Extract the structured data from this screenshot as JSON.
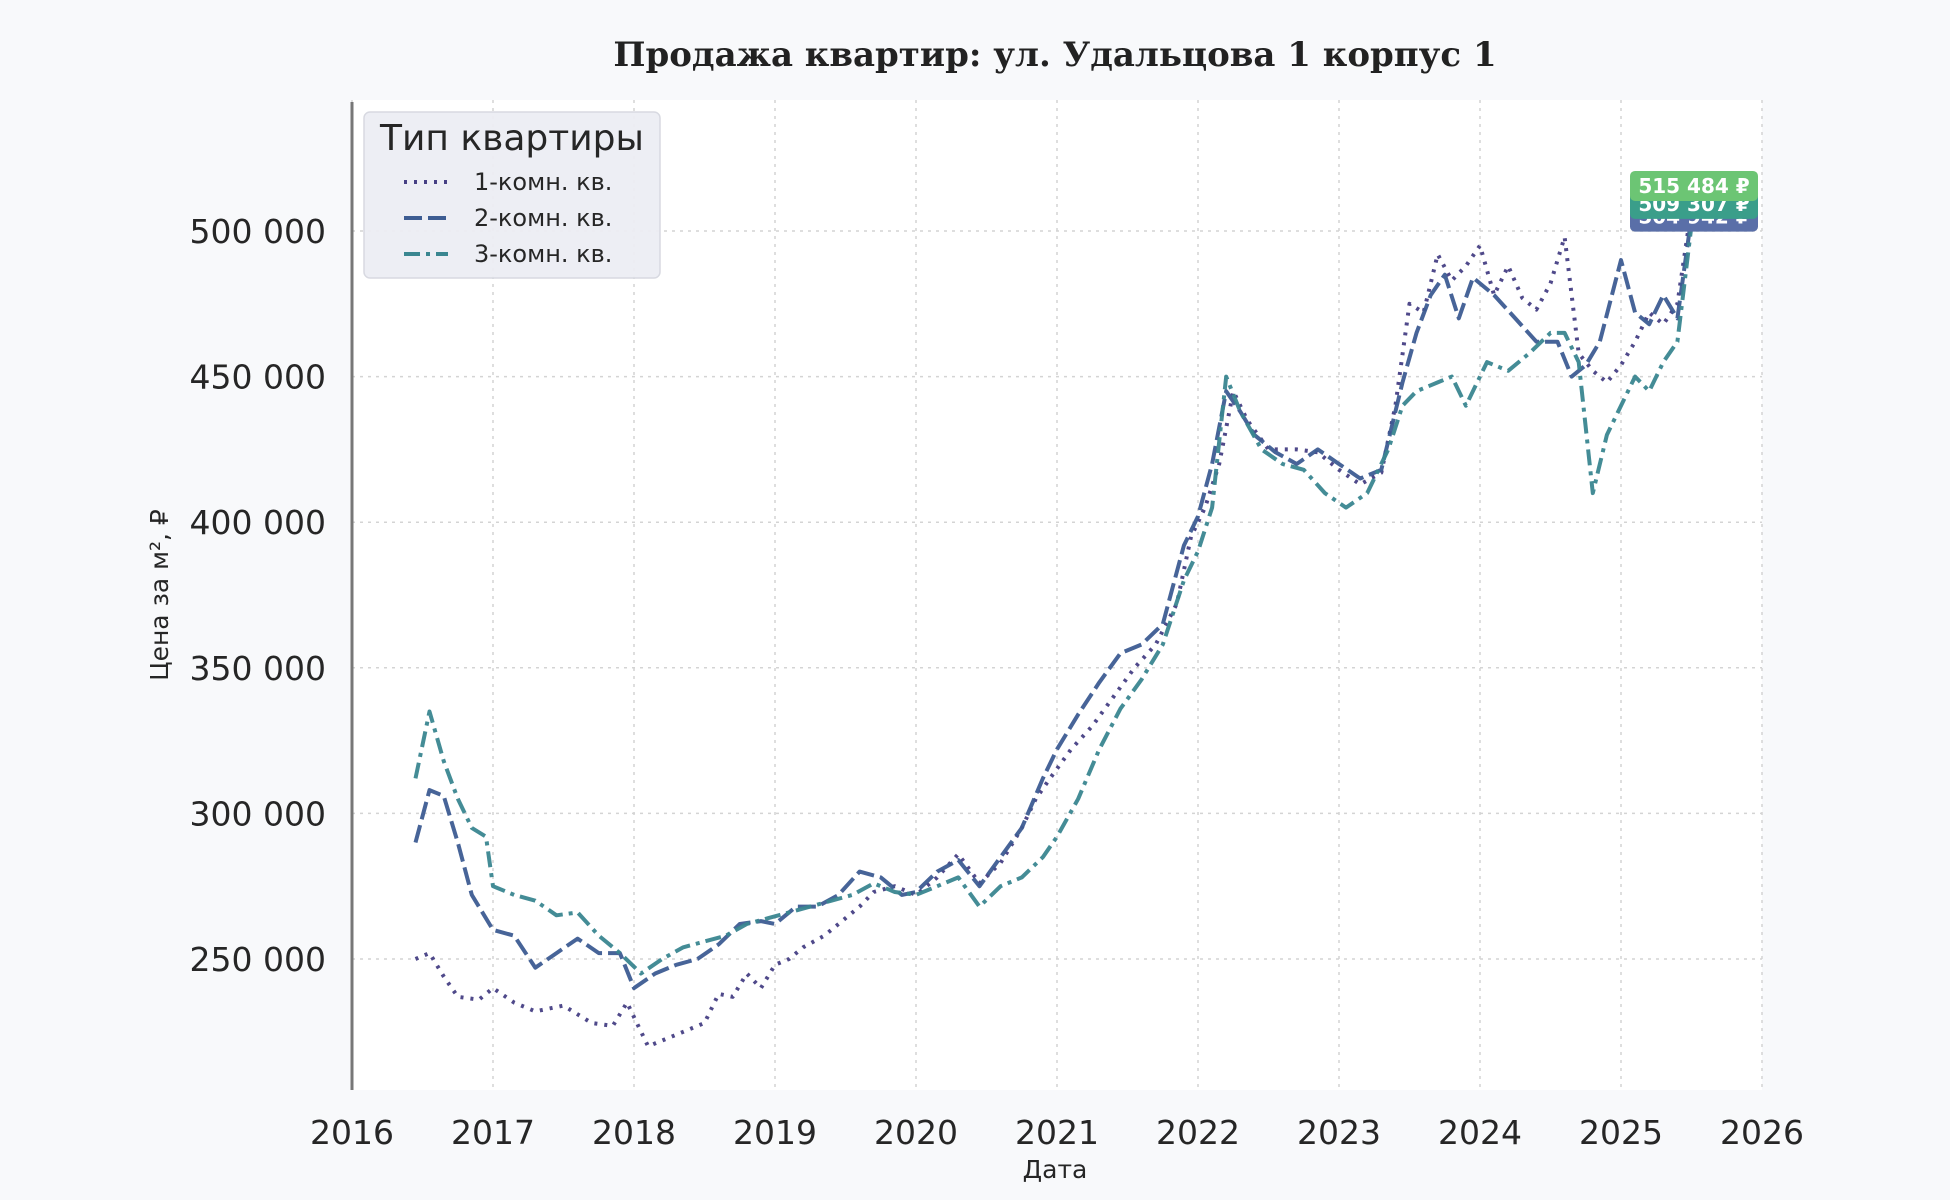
{
  "chart_data": {
    "type": "line",
    "title": "Продажа квартир: ул. Удальцова 1 корпус 1",
    "xlabel": "Дата",
    "ylabel": "Цена за м², ₽",
    "xlim": [
      2016.0,
      2026.0
    ],
    "ylim": [
      205000,
      545000
    ],
    "x_ticks": [
      2016,
      2017,
      2018,
      2019,
      2020,
      2021,
      2022,
      2023,
      2024,
      2025,
      2026
    ],
    "x_tick_labels": [
      "2016",
      "2017",
      "2018",
      "2019",
      "2020",
      "2021",
      "2022",
      "2023",
      "2024",
      "2025",
      "2026"
    ],
    "y_ticks": [
      250000,
      300000,
      350000,
      400000,
      450000,
      500000
    ],
    "y_tick_labels": [
      "250 000",
      "300 000",
      "350 000",
      "400 000",
      "450 000",
      "500 000"
    ],
    "grid": true,
    "legend": {
      "title": "Тип квартиры",
      "placement": "top-left"
    },
    "series": [
      {
        "name": "1-комн. кв.",
        "color": "#463f84",
        "dash": "dotted",
        "x": [
          2016.45,
          2016.55,
          2016.65,
          2016.75,
          2016.9,
          2017.0,
          2017.15,
          2017.3,
          2017.5,
          2017.7,
          2017.85,
          2017.95,
          2018.1,
          2018.2,
          2018.35,
          2018.5,
          2018.6,
          2018.7,
          2018.8,
          2018.9,
          2019.0,
          2019.1,
          2019.2,
          2019.35,
          2019.45,
          2019.6,
          2019.7,
          2019.85,
          2020.0,
          2020.15,
          2020.3,
          2020.45,
          2020.6,
          2020.75,
          2020.85,
          2020.95,
          2021.1,
          2021.25,
          2021.4,
          2021.55,
          2021.7,
          2021.85,
          2021.95,
          2022.05,
          2022.15,
          2022.25,
          2022.35,
          2022.5,
          2022.7,
          2022.85,
          2023.0,
          2023.15,
          2023.3,
          2023.4,
          2023.5,
          2023.6,
          2023.7,
          2023.8,
          2023.9,
          2024.0,
          2024.1,
          2024.2,
          2024.3,
          2024.4,
          2024.5,
          2024.6,
          2024.7,
          2024.8,
          2024.9,
          2025.0,
          2025.1,
          2025.2,
          2025.3,
          2025.4,
          2025.5
        ],
        "y": [
          250000,
          252000,
          244000,
          237000,
          236000,
          240000,
          235000,
          232000,
          234000,
          228000,
          227000,
          235000,
          220000,
          222000,
          225000,
          228000,
          238000,
          237000,
          245000,
          240000,
          248000,
          250000,
          254000,
          258000,
          262000,
          268000,
          273000,
          275000,
          272000,
          278000,
          286000,
          276000,
          283000,
          295000,
          305000,
          312000,
          322000,
          330000,
          340000,
          350000,
          358000,
          372000,
          395000,
          405000,
          420000,
          445000,
          435000,
          425000,
          425000,
          424000,
          418000,
          413000,
          417000,
          440000,
          475000,
          472000,
          492000,
          483000,
          488000,
          495000,
          478000,
          488000,
          477000,
          473000,
          482000,
          498000,
          458000,
          452000,
          448000,
          454000,
          462000,
          472000,
          468000,
          475000,
          508000
        ]
      },
      {
        "name": "2-комн. кв.",
        "color": "#3d5c92",
        "dash": "dashed",
        "x": [
          2016.45,
          2016.55,
          2016.65,
          2016.75,
          2016.85,
          2017.0,
          2017.15,
          2017.3,
          2017.45,
          2017.6,
          2017.75,
          2017.9,
          2018.0,
          2018.15,
          2018.3,
          2018.45,
          2018.6,
          2018.75,
          2018.9,
          2019.0,
          2019.15,
          2019.3,
          2019.45,
          2019.6,
          2019.75,
          2019.9,
          2020.0,
          2020.15,
          2020.3,
          2020.45,
          2020.6,
          2020.75,
          2020.9,
          2021.0,
          2021.15,
          2021.3,
          2021.45,
          2021.6,
          2021.75,
          2021.9,
          2022.0,
          2022.1,
          2022.2,
          2022.3,
          2022.4,
          2022.55,
          2022.7,
          2022.85,
          2023.0,
          2023.15,
          2023.3,
          2023.45,
          2023.55,
          2023.65,
          2023.75,
          2023.85,
          2023.95,
          2024.1,
          2024.25,
          2024.4,
          2024.55,
          2024.65,
          2024.75,
          2024.85,
          2025.0,
          2025.1,
          2025.2,
          2025.3,
          2025.4,
          2025.5
        ],
        "y": [
          290000,
          308000,
          306000,
          290000,
          272000,
          260000,
          258000,
          247000,
          252000,
          257000,
          252000,
          252000,
          240000,
          245000,
          248000,
          250000,
          255000,
          262000,
          263000,
          262000,
          268000,
          268000,
          272000,
          280000,
          278000,
          272000,
          273000,
          280000,
          284000,
          275000,
          285000,
          295000,
          312000,
          322000,
          334000,
          345000,
          355000,
          358000,
          365000,
          392000,
          402000,
          420000,
          445000,
          438000,
          430000,
          424000,
          420000,
          425000,
          420000,
          415000,
          418000,
          448000,
          465000,
          478000,
          485000,
          470000,
          484000,
          478000,
          470000,
          462000,
          462000,
          450000,
          454000,
          462000,
          490000,
          472000,
          468000,
          478000,
          470000,
          505000
        ]
      },
      {
        "name": "3-комн. кв.",
        "color": "#3a8690",
        "dash": "dashdot",
        "x": [
          2016.45,
          2016.55,
          2016.65,
          2016.75,
          2016.85,
          2016.95,
          2017.0,
          2017.15,
          2017.3,
          2017.45,
          2017.6,
          2017.75,
          2017.9,
          2018.05,
          2018.2,
          2018.35,
          2018.5,
          2018.65,
          2018.8,
          2018.95,
          2019.1,
          2019.25,
          2019.4,
          2019.55,
          2019.7,
          2019.85,
          2020.0,
          2020.15,
          2020.3,
          2020.45,
          2020.6,
          2020.75,
          2020.9,
          2021.0,
          2021.15,
          2021.3,
          2021.45,
          2021.6,
          2021.75,
          2021.9,
          2022.0,
          2022.1,
          2022.2,
          2022.3,
          2022.45,
          2022.6,
          2022.75,
          2022.9,
          2023.05,
          2023.2,
          2023.35,
          2023.45,
          2023.55,
          2023.7,
          2023.8,
          2023.9,
          2024.05,
          2024.2,
          2024.35,
          2024.5,
          2024.6,
          2024.7,
          2024.8,
          2024.9,
          2025.0,
          2025.1,
          2025.2,
          2025.3,
          2025.4,
          2025.5
        ],
        "y": [
          312000,
          335000,
          318000,
          305000,
          295000,
          292000,
          275000,
          272000,
          270000,
          265000,
          266000,
          258000,
          252000,
          245000,
          250000,
          254000,
          256000,
          258000,
          262000,
          264000,
          266000,
          268000,
          270000,
          272000,
          276000,
          273000,
          272000,
          275000,
          278000,
          268000,
          275000,
          278000,
          285000,
          292000,
          305000,
          322000,
          336000,
          346000,
          358000,
          380000,
          390000,
          405000,
          450000,
          438000,
          425000,
          420000,
          418000,
          410000,
          405000,
          410000,
          425000,
          440000,
          445000,
          448000,
          450000,
          440000,
          455000,
          452000,
          458000,
          465000,
          465000,
          455000,
          410000,
          430000,
          440000,
          450000,
          445000,
          455000,
          462000,
          502000
        ]
      }
    ],
    "annotations": [
      {
        "text": "515 484 ₽",
        "series": "1-комн. кв.",
        "color": "#6cc574",
        "y_value": 515484
      },
      {
        "text": "509 307 ₽",
        "series": "3-комн. кв.",
        "color": "#3a9e8a",
        "y_value": 509307
      },
      {
        "text": "504 942 ₽",
        "series": "2-комн. кв.",
        "color": "#5a6fa8",
        "y_value": 504942
      }
    ]
  }
}
